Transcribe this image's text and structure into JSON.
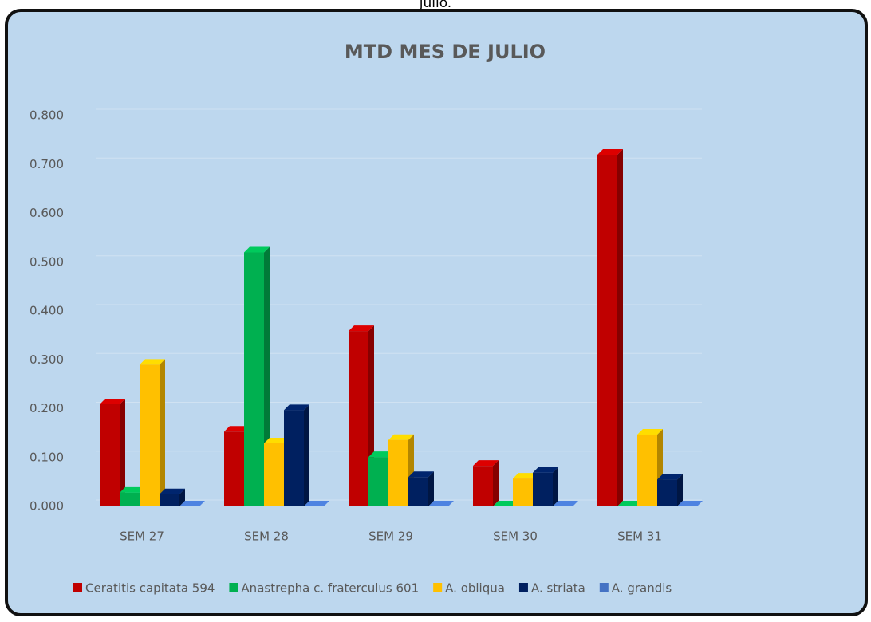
{
  "caption": "julio.",
  "chart_data": {
    "type": "bar3d",
    "title": "MTD MES DE JULIO",
    "categories": [
      "SEM 27",
      "SEM 28",
      "SEM 29",
      "SEM 30",
      "SEM 31"
    ],
    "series": [
      {
        "name": "Ceratitis capitata 594",
        "color": "#c00000",
        "values": [
          0.209,
          0.153,
          0.359,
          0.083,
          0.72
        ]
      },
      {
        "name": "Anastrepha c. fraterculus 601",
        "color": "#00b050",
        "values": [
          0.028,
          0.52,
          0.101,
          0,
          0
        ]
      },
      {
        "name": "A. obliqua",
        "color": "#ffc000",
        "values": [
          0.29,
          0.129,
          0.136,
          0.057,
          0.147
        ]
      },
      {
        "name": "A. striata",
        "color": "#002060",
        "values": [
          0.025,
          0.197,
          0.06,
          0.069,
          0.055
        ]
      },
      {
        "name": "A. grandis",
        "color": "#4472c4",
        "values": [
          0,
          0,
          0,
          0,
          0
        ]
      }
    ],
    "ylim": [
      0,
      0.8
    ],
    "yticks": [
      {
        "value": 0,
        "label": "0.000"
      },
      {
        "value": 0.1,
        "label": "0.100"
      },
      {
        "value": 0.2,
        "label": "0.200"
      },
      {
        "value": 0.3,
        "label": "0.300"
      },
      {
        "value": 0.4,
        "label": "0.400"
      },
      {
        "value": 0.5,
        "label": "0.500"
      },
      {
        "value": 0.6,
        "label": "0.600"
      },
      {
        "value": 0.7,
        "label": "0.700"
      },
      {
        "value": 0.8,
        "label": "0.800"
      }
    ],
    "grid": true,
    "legend": "bottom"
  }
}
